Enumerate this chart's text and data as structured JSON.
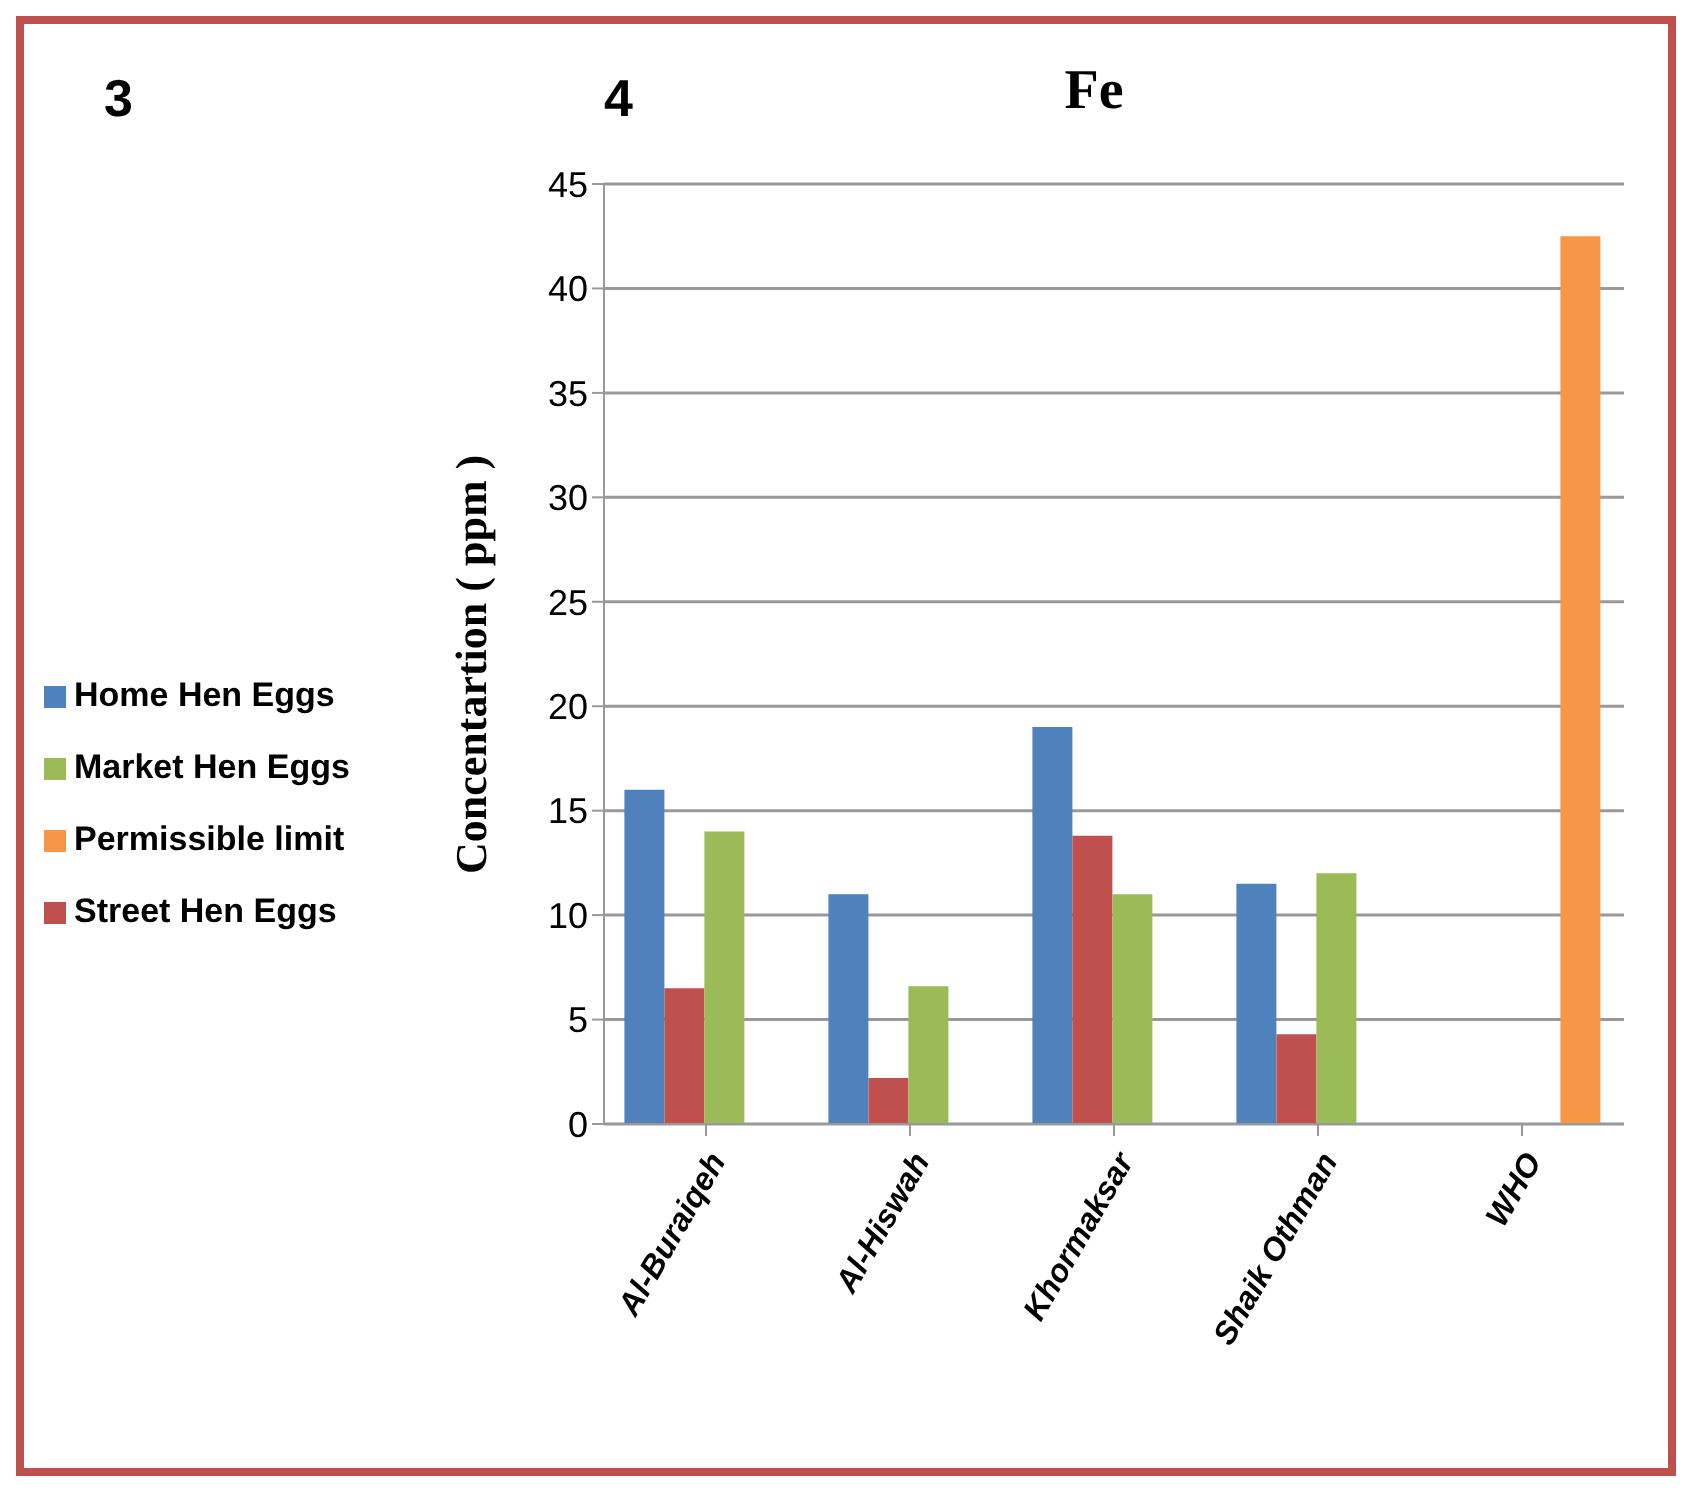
{
  "chart_data": {
    "type": "bar",
    "title": "Fe",
    "ylabel": "Concentartion ( ppm )",
    "annotations": [
      "3",
      "4"
    ],
    "categories": [
      "Al-Buraiqeh",
      "Al-Hiswah",
      "Khormaksar",
      "Shaik Othman",
      "WHO"
    ],
    "series": [
      {
        "name": "Home Hen Eggs",
        "color": "#4f81bd",
        "values": [
          16,
          11,
          19,
          11.5,
          null
        ]
      },
      {
        "name": "Street Hen Eggs",
        "color": "#c0504d",
        "values": [
          6.5,
          2.2,
          13.8,
          4.3,
          null
        ]
      },
      {
        "name": "Market Hen Eggs",
        "color": "#9bbb59",
        "values": [
          14,
          6.6,
          11,
          12,
          null
        ]
      },
      {
        "name": "Permissible limit",
        "color": "#f79646",
        "values": [
          null,
          null,
          null,
          null,
          42.5
        ]
      }
    ],
    "ylim": [
      0,
      45
    ],
    "yticks": [
      0,
      5,
      10,
      15,
      20,
      25,
      30,
      35,
      40,
      45
    ],
    "grid": "y",
    "legend": "left"
  }
}
